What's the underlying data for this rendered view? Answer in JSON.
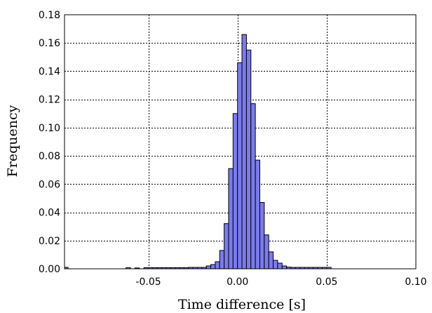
{
  "chart_data": {
    "type": "bar",
    "title": "",
    "xlabel": "Time difference [s]",
    "ylabel": "Frequency",
    "xlim": [
      -0.097,
      0.1
    ],
    "ylim": [
      0,
      0.18
    ],
    "xticks": [
      -0.05,
      0.0,
      0.05,
      0.1
    ],
    "xtick_labels": [
      "-0.05",
      "0.00",
      "0.05",
      "0.10"
    ],
    "yticks": [
      0,
      0.02,
      0.04,
      0.06,
      0.08,
      0.1,
      0.12,
      0.14,
      0.16,
      0.18
    ],
    "ytick_labels": [
      "0.00",
      "0.02",
      "0.04",
      "0.06",
      "0.08",
      "0.10",
      "0.12",
      "0.14",
      "0.16",
      "0.18"
    ],
    "grid": true,
    "bar_color": "#7b7bee",
    "bin_start": -0.0975,
    "bin_width": 0.0025,
    "values": [
      0.001,
      0,
      0,
      0,
      0,
      0,
      0,
      0,
      0,
      0,
      0,
      0,
      0,
      0,
      0.0008,
      0,
      0.0006,
      0,
      0.0008,
      0.0008,
      0.0008,
      0.0008,
      0.0008,
      0.0008,
      0.0008,
      0.0008,
      0.0008,
      0.0008,
      0.001,
      0.001,
      0.001,
      0.001,
      0.002,
      0.003,
      0.005,
      0.013,
      0.032,
      0.071,
      0.11,
      0.146,
      0.166,
      0.155,
      0.117,
      0.077,
      0.047,
      0.024,
      0.012,
      0.006,
      0.004,
      0.002,
      0.0012,
      0.001,
      0.001,
      0.001,
      0.001,
      0.001,
      0.001,
      0.001,
      0.001,
      0.001
    ]
  }
}
